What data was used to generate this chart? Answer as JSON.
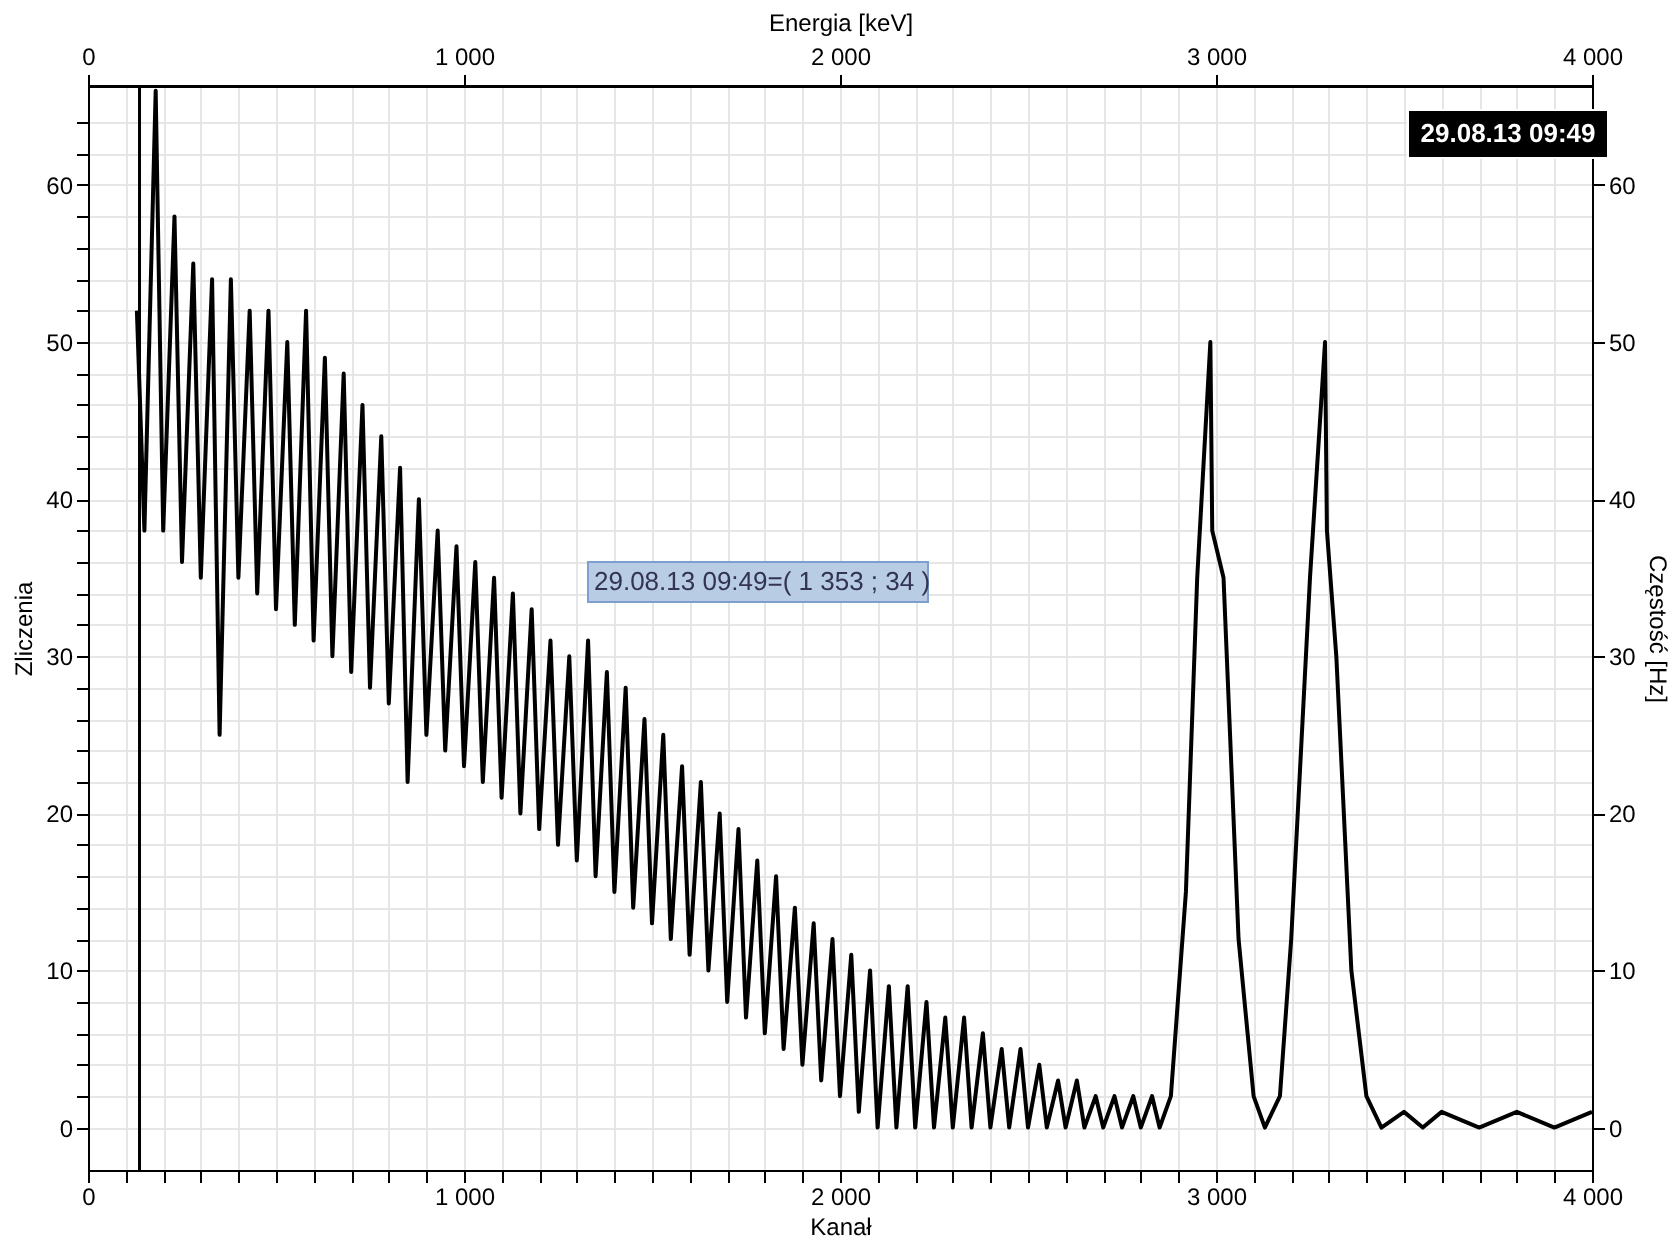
{
  "chart_data": {
    "type": "line",
    "xlabel": "Kanał",
    "x2label": "Energia [keV]",
    "ylabel": "Zliczenia",
    "y2label": "Częstość [Hz]",
    "series": [
      {
        "color": "#000000",
        "line_style": "solid",
        "marker": "none",
        "x": [
          130,
          150,
          180,
          200,
          230,
          250,
          280,
          300,
          330,
          350,
          380,
          400,
          430,
          450,
          480,
          500,
          530,
          550,
          580,
          600,
          630,
          650,
          680,
          700,
          730,
          750,
          780,
          800,
          830,
          850,
          880,
          900,
          930,
          950,
          980,
          1000,
          1030,
          1050,
          1080,
          1100,
          1130,
          1150,
          1180,
          1200,
          1230,
          1250,
          1280,
          1300,
          1330,
          1350,
          1380,
          1400,
          1430,
          1450,
          1480,
          1500,
          1530,
          1550,
          1580,
          1600,
          1630,
          1650,
          1680,
          1700,
          1730,
          1750,
          1780,
          1800,
          1830,
          1850,
          1880,
          1900,
          1930,
          1950,
          1980,
          2000,
          2030,
          2050,
          2080,
          2100,
          2130,
          2150,
          2180,
          2200,
          2230,
          2250,
          2280,
          2300,
          2330,
          2350,
          2380,
          2400,
          2430,
          2450,
          2480,
          2500,
          2530,
          2550,
          2580,
          2600,
          2630,
          2650,
          2680,
          2700,
          2730,
          2750,
          2780,
          2800,
          2830,
          2850,
          2880,
          2920,
          2950,
          2985,
          2990,
          3020,
          3060,
          3100,
          3130,
          3170,
          3200,
          3250,
          3290,
          3295,
          3320,
          3360,
          3400,
          3440,
          3500,
          3550,
          3600,
          3700,
          3800,
          3900,
          4000
        ],
        "values": [
          52,
          38,
          66,
          38,
          58,
          36,
          55,
          35,
          54,
          25,
          54,
          35,
          52,
          34,
          52,
          33,
          50,
          32,
          52,
          31,
          49,
          30,
          48,
          29,
          46,
          28,
          44,
          27,
          42,
          22,
          40,
          25,
          38,
          24,
          37,
          23,
          36,
          22,
          35,
          21,
          34,
          20,
          33,
          19,
          31,
          18,
          30,
          17,
          31,
          16,
          29,
          15,
          28,
          14,
          26,
          13,
          25,
          12,
          23,
          11,
          22,
          10,
          20,
          8,
          19,
          7,
          17,
          6,
          16,
          5,
          14,
          4,
          13,
          3,
          12,
          2,
          11,
          1,
          10,
          0,
          9,
          0,
          9,
          0,
          8,
          0,
          7,
          0,
          7,
          0,
          6,
          0,
          5,
          0,
          5,
          0,
          4,
          0,
          3,
          0,
          3,
          0,
          2,
          0,
          2,
          0,
          2,
          0,
          2,
          0,
          2,
          15,
          35,
          50,
          38,
          35,
          12,
          2,
          0,
          2,
          12,
          35,
          50,
          38,
          30,
          10,
          2,
          0,
          1,
          0,
          1,
          0,
          1,
          0,
          1
        ]
      }
    ],
    "xlim": [
      0,
      4000
    ],
    "xticks": [
      0,
      {
        "value": 100,
        "label": null
      },
      {
        "value": 200,
        "label": null
      },
      {
        "value": 300,
        "label": null
      },
      {
        "value": 400,
        "label": null
      },
      {
        "value": 500,
        "label": null
      },
      {
        "value": 600,
        "label": null
      },
      {
        "value": 700,
        "label": null
      },
      {
        "value": 800,
        "label": null
      },
      {
        "value": 900,
        "label": null
      },
      {
        "value": 1000,
        "label": "1 000"
      },
      {
        "value": 1100,
        "label": null
      },
      {
        "value": 1200,
        "label": null
      },
      {
        "value": 1300,
        "label": null
      },
      {
        "value": 1400,
        "label": null
      },
      {
        "value": 1500,
        "label": null
      },
      {
        "value": 1600,
        "label": null
      },
      {
        "value": 1700,
        "label": null
      },
      {
        "value": 1800,
        "label": null
      },
      {
        "value": 1900,
        "label": null
      },
      {
        "value": 2000,
        "label": "2 000"
      },
      {
        "value": 2100,
        "label": null
      },
      {
        "value": 2200,
        "label": null
      },
      {
        "value": 2300,
        "label": null
      },
      {
        "value": 2400,
        "label": null
      },
      {
        "value": 2500,
        "label": null
      },
      {
        "value": 2600,
        "label": null
      },
      {
        "value": 2700,
        "label": null
      },
      {
        "value": 2800,
        "label": null
      },
      {
        "value": 2900,
        "label": null
      },
      {
        "value": 3000,
        "label": "3 000"
      },
      {
        "value": 3100,
        "label": null
      },
      {
        "value": 3200,
        "label": null
      },
      {
        "value": 3300,
        "label": null
      },
      {
        "value": 3400,
        "label": null
      },
      {
        "value": 3500,
        "label": null
      },
      {
        "value": 3600,
        "label": null
      },
      {
        "value": 3700,
        "label": null
      },
      {
        "value": 3800,
        "label": null
      },
      {
        "value": 3900,
        "label": null
      },
      {
        "value": 4000,
        "label": "4 000"
      }
    ],
    "x2lim": [
      0,
      4000
    ],
    "x2ticks": [
      0,
      {
        "value": 1000,
        "label": "1 000"
      },
      {
        "value": 2000,
        "label": "2 000"
      },
      {
        "value": 3000,
        "label": "3 000"
      },
      {
        "value": 4000,
        "label": "4 000"
      }
    ],
    "ylim": [
      -2.7,
      66.3
    ],
    "yticks": [
      0,
      {
        "value": 2,
        "label": null
      },
      {
        "value": 4,
        "label": null
      },
      {
        "value": 6,
        "label": null
      },
      {
        "value": 8,
        "label": null
      },
      10,
      {
        "value": 12,
        "label": null
      },
      {
        "value": 14,
        "label": null
      },
      {
        "value": 16,
        "label": null
      },
      {
        "value": 18,
        "label": null
      },
      20,
      {
        "value": 22,
        "label": null
      },
      {
        "value": 24,
        "label": null
      },
      {
        "value": 26,
        "label": null
      },
      {
        "value": 28,
        "label": null
      },
      30,
      {
        "value": 32,
        "label": null
      },
      {
        "value": 34,
        "label": null
      },
      {
        "value": 36,
        "label": null
      },
      {
        "value": 38,
        "label": null
      },
      40,
      {
        "value": 42,
        "label": null
      },
      {
        "value": 44,
        "label": null
      },
      {
        "value": 46,
        "label": null
      },
      {
        "value": 48,
        "label": null
      },
      50,
      {
        "value": 52,
        "label": null
      },
      {
        "value": 54,
        "label": null
      },
      {
        "value": 56,
        "label": null
      },
      {
        "value": 58,
        "label": null
      },
      60,
      {
        "value": 62,
        "label": null
      },
      {
        "value": 64,
        "label": null
      }
    ],
    "y2lim": [
      -2.7,
      66.3
    ],
    "y2ticks": [
      0,
      10,
      20,
      30,
      40,
      50,
      60
    ],
    "grid": true,
    "ref_lines": [
      {
        "axis": "x",
        "value": 137,
        "color": "#000000",
        "line_style": "solid"
      }
    ],
    "annotations": [
      "29.08.13 09:49",
      "29.08.13 09:49=( 1 353 ; 34 )"
    ]
  }
}
